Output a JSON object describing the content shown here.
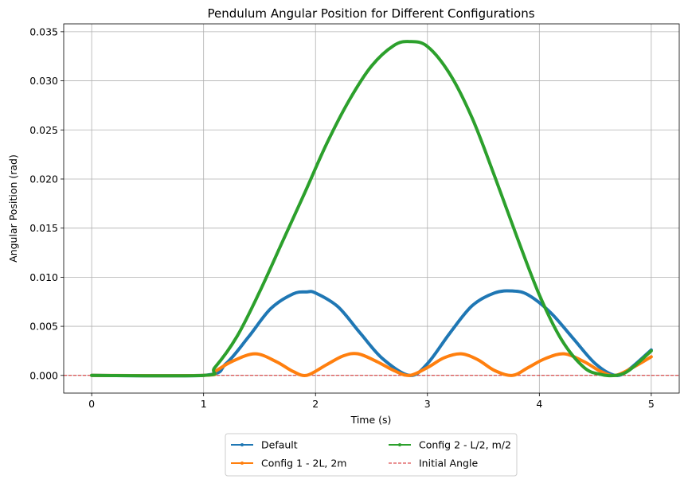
{
  "chart_data": {
    "type": "line",
    "title": "Pendulum Angular Position for Different Configurations",
    "xlabel": "Time (s)",
    "ylabel": "Angular Position (rad)",
    "xlim": [
      -0.25,
      5.25
    ],
    "ylim": [
      -0.0018,
      0.0358
    ],
    "xticks": [
      0,
      1,
      2,
      3,
      4,
      5
    ],
    "xtick_labels": [
      "0",
      "1",
      "2",
      "3",
      "4",
      "5"
    ],
    "yticks": [
      0.0,
      0.005,
      0.01,
      0.015,
      0.02,
      0.025,
      0.03,
      0.035
    ],
    "ytick_labels": [
      "0.000",
      "0.005",
      "0.010",
      "0.015",
      "0.020",
      "0.025",
      "0.030",
      "0.035"
    ],
    "grid": true,
    "legend": {
      "placement": "below-center",
      "columns": 2,
      "entries": [
        {
          "label": "Default",
          "series": 0
        },
        {
          "label": "Config 1 -  2L, 2m",
          "series": 1
        },
        {
          "label": "Config 2 - L/2, m/2",
          "series": 2
        },
        {
          "label": "Initial Angle",
          "series": 3
        }
      ]
    },
    "series": [
      {
        "name": "Default",
        "color": "#1f77b4",
        "x": [
          0,
          1.0,
          1.2,
          1.4,
          1.6,
          1.8,
          1.92,
          2.0,
          2.2,
          2.4,
          2.6,
          2.84,
          3.0,
          3.2,
          3.4,
          3.6,
          3.76,
          3.9,
          4.1,
          4.3,
          4.5,
          4.68,
          4.8,
          5.0
        ],
        "y": [
          0,
          0,
          0.0012,
          0.0039,
          0.0068,
          0.0083,
          0.0085,
          0.0084,
          0.007,
          0.0043,
          0.0017,
          0.0,
          0.0012,
          0.0043,
          0.0071,
          0.0084,
          0.0086,
          0.0082,
          0.0064,
          0.0038,
          0.0012,
          0.0,
          0.0006,
          0.0026
        ]
      },
      {
        "name": "Config 1 -  2L, 2m",
        "color": "#ff7f0e",
        "x": [
          0,
          1.0,
          1.1,
          1.25,
          1.46,
          1.65,
          1.8,
          1.92,
          2.1,
          2.25,
          2.38,
          2.55,
          2.7,
          2.84,
          3.0,
          3.15,
          3.3,
          3.45,
          3.6,
          3.76,
          3.9,
          4.05,
          4.22,
          4.4,
          4.55,
          4.68,
          4.85,
          5.0
        ],
        "y": [
          0,
          0,
          0.0004,
          0.0014,
          0.0022,
          0.0014,
          0.0004,
          0.0,
          0.0011,
          0.002,
          0.0022,
          0.0014,
          0.0005,
          0.0,
          0.0008,
          0.0018,
          0.0022,
          0.0016,
          0.0005,
          0.0,
          0.0008,
          0.0017,
          0.0022,
          0.0014,
          0.0004,
          0.0,
          0.0009,
          0.0019
        ]
      },
      {
        "name": "Config 2 - L/2, m/2",
        "color": "#2ca02c",
        "x": [
          0,
          1.0,
          1.1,
          1.3,
          1.5,
          1.7,
          1.9,
          2.1,
          2.3,
          2.5,
          2.7,
          2.84,
          3.0,
          3.2,
          3.4,
          3.6,
          3.8,
          4.0,
          4.2,
          4.4,
          4.55,
          4.68,
          4.8,
          5.0
        ],
        "y": [
          0,
          0,
          0.0008,
          0.004,
          0.0085,
          0.0135,
          0.0185,
          0.0236,
          0.028,
          0.0315,
          0.0336,
          0.034,
          0.0335,
          0.0307,
          0.0262,
          0.0203,
          0.0141,
          0.0082,
          0.0036,
          0.0008,
          0.0001,
          0.0,
          0.0005,
          0.0025
        ]
      },
      {
        "name": "Initial Angle",
        "color": "#d62728",
        "style": "dashed",
        "x": [
          -0.25,
          5.25
        ],
        "y": [
          0,
          0
        ]
      }
    ]
  }
}
